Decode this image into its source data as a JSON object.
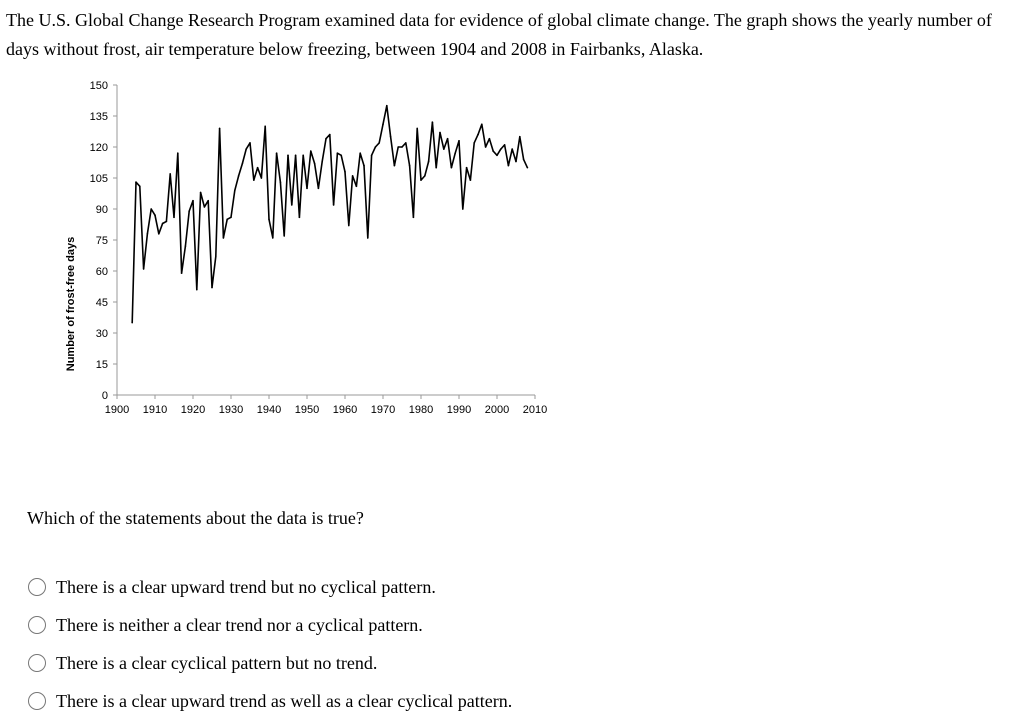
{
  "intro": "The U.S. Global Change Research Program examined data for evidence of global climate change. The graph shows the yearly number of days without frost, air temperature below freezing, between 1904 and 2008 in Fairbanks, Alaska.",
  "question": "Which of the statements about the data is true?",
  "options": [
    "There is a clear upward trend but no cyclical pattern.",
    "There is neither a clear trend nor a cyclical pattern.",
    "There is a clear cyclical pattern but no trend.",
    "There is a clear upward trend as well as a clear cyclical pattern."
  ],
  "chart_data": {
    "type": "line",
    "ylabel": "Number of frost-free days",
    "xlabel": "",
    "xlim": [
      1900,
      2010
    ],
    "ylim": [
      0,
      150
    ],
    "xticks": [
      1900,
      1910,
      1920,
      1930,
      1940,
      1950,
      1960,
      1970,
      1980,
      1990,
      2000,
      2010
    ],
    "yticks": [
      0,
      15,
      30,
      45,
      60,
      75,
      90,
      105,
      120,
      135,
      150
    ],
    "line_color": "#000000",
    "grid": false,
    "series": [
      {
        "x": [
          1904,
          1905,
          1906,
          1907,
          1908,
          1909,
          1910,
          1911,
          1912,
          1913,
          1914,
          1915,
          1916,
          1917,
          1918,
          1919,
          1920,
          1921,
          1922,
          1923,
          1924,
          1925,
          1926,
          1927,
          1928,
          1929,
          1930,
          1931,
          1932,
          1933,
          1934,
          1935,
          1936,
          1937,
          1938,
          1939,
          1940,
          1941,
          1942,
          1943,
          1944,
          1945,
          1946,
          1947,
          1948,
          1949,
          1950,
          1951,
          1952,
          1953,
          1954,
          1955,
          1956,
          1957,
          1958,
          1959,
          1960,
          1961,
          1962,
          1963,
          1964,
          1965,
          1966,
          1967,
          1968,
          1969,
          1970,
          1971,
          1972,
          1973,
          1974,
          1975,
          1976,
          1977,
          1978,
          1979,
          1980,
          1981,
          1982,
          1983,
          1984,
          1985,
          1986,
          1987,
          1988,
          1989,
          1990,
          1991,
          1992,
          1993,
          1994,
          1995,
          1996,
          1997,
          1998,
          1999,
          2000,
          2001,
          2002,
          2003,
          2004,
          2005,
          2006,
          2007,
          2008
        ],
        "values": [
          35,
          103,
          101,
          61,
          78,
          90,
          87,
          78,
          83,
          84,
          107,
          86,
          117,
          59,
          72,
          89,
          94,
          51,
          98,
          91,
          94,
          52,
          67,
          129,
          76,
          85,
          86,
          99,
          106,
          112,
          119,
          122,
          104,
          110,
          105,
          130,
          85,
          76,
          117,
          103,
          77,
          116,
          92,
          116,
          86,
          116,
          100,
          118,
          112,
          100,
          113,
          124,
          126,
          92,
          117,
          116,
          108,
          82,
          106,
          101,
          117,
          111,
          76,
          116,
          120,
          122,
          131,
          140,
          125,
          111,
          120,
          120,
          122,
          111,
          86,
          129,
          104,
          106,
          113,
          132,
          110,
          127,
          119,
          124,
          110,
          117,
          123,
          90,
          110,
          104,
          122,
          126,
          131,
          120,
          124,
          118,
          116,
          119,
          121,
          111,
          119,
          113,
          125,
          114,
          110
        ]
      }
    ]
  }
}
